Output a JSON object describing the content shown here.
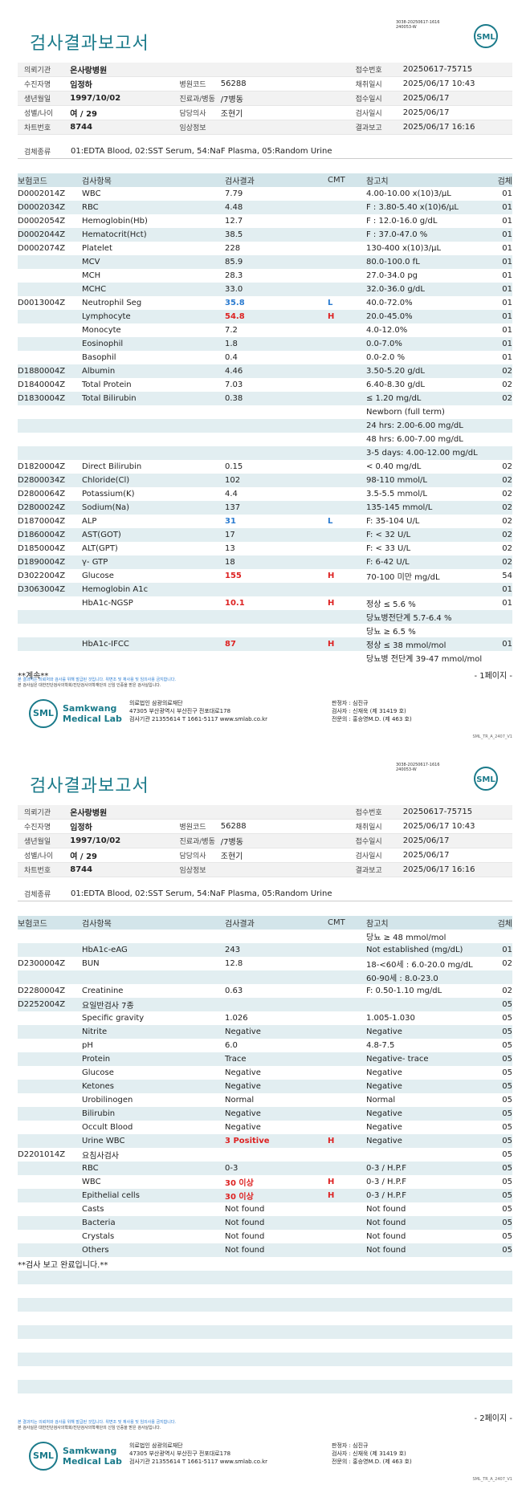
{
  "pages": [
    {
      "doc_no": "3038-20250617-1616\n240053-W",
      "title": "검사결과보고서",
      "logo": "SML",
      "info": [
        [
          {
            "label": "의뢰기관",
            "value": "온사랑병원",
            "bold": true
          },
          {
            "label": "",
            "value": ""
          },
          {
            "label": "접수번호",
            "value": "20250617-75715"
          }
        ],
        [
          {
            "label": "수진자명",
            "value": "임정하",
            "bold": true
          },
          {
            "label": "병원코드",
            "value": "56288"
          },
          {
            "label": "채취일시",
            "value": "2025/06/17 10:43"
          }
        ],
        [
          {
            "label": "생년월일",
            "value": "1997/10/02",
            "bold": true
          },
          {
            "label": "진료과/병동",
            "value": "/7병동"
          },
          {
            "label": "접수일시",
            "value": "2025/06/17"
          }
        ],
        [
          {
            "label": "성별/나이",
            "value": "여 / 29",
            "bold": true
          },
          {
            "label": "담당의사",
            "value": "조현기"
          },
          {
            "label": "검사일시",
            "value": "2025/06/17"
          }
        ],
        [
          {
            "label": "차트번호",
            "value": "8744",
            "bold": true
          },
          {
            "label": "임상정보",
            "value": ""
          },
          {
            "label": "결과보고",
            "value": "2025/06/17 16:16"
          }
        ]
      ],
      "spec_label": "검체종류",
      "spec_value": "01:EDTA Blood, 02:SST Serum, 54:NaF Plasma, 05:Random Urine",
      "headers": [
        "보험코드",
        "검사항목",
        "검사결과",
        "CMT",
        "참고치",
        "검체"
      ],
      "rows": [
        [
          "D0002014Z",
          "WBC",
          "7.79",
          "",
          "4.00-10.00 x(10)3/μL",
          "01"
        ],
        [
          "D0002034Z",
          "RBC",
          "4.48",
          "",
          "F : 3.80-5.40 x(10)6/μL",
          "01"
        ],
        [
          "D0002054Z",
          "Hemoglobin(Hb)",
          "12.7",
          "",
          "F : 12.0-16.0 g/dL",
          "01"
        ],
        [
          "D0002044Z",
          "Hematocrit(Hct)",
          "38.5",
          "",
          "F : 37.0-47.0 %",
          "01"
        ],
        [
          "D0002074Z",
          "Platelet",
          "228",
          "",
          "130-400 x(10)3/μL",
          "01"
        ],
        [
          "",
          "MCV",
          "85.9",
          "",
          "80.0-100.0 fL",
          "01"
        ],
        [
          "",
          "MCH",
          "28.3",
          "",
          "27.0-34.0 pg",
          "01"
        ],
        [
          "",
          "MCHC",
          "33.0",
          "",
          "32.0-36.0 g/dL",
          "01"
        ],
        [
          "D0013004Z",
          "Neutrophil Seg",
          "35.8",
          "L",
          "40.0-72.0%",
          "01"
        ],
        [
          "",
          "Lymphocyte",
          "54.8",
          "H",
          "20.0-45.0%",
          "01"
        ],
        [
          "",
          "Monocyte",
          "7.2",
          "",
          "4.0-12.0%",
          "01"
        ],
        [
          "",
          "Eosinophil",
          "1.8",
          "",
          "0.0-7.0%",
          "01"
        ],
        [
          "",
          "Basophil",
          "0.4",
          "",
          "0.0-2.0 %",
          "01"
        ],
        [
          "D1880004Z",
          "Albumin",
          "4.46",
          "",
          "3.50-5.20 g/dL",
          "02"
        ],
        [
          "D1840004Z",
          "Total Protein",
          "7.03",
          "",
          "6.40-8.30 g/dL",
          "02"
        ],
        [
          "D1830004Z",
          "Total Bilirubin",
          "0.38",
          "",
          "≤ 1.20 mg/dL",
          "02"
        ],
        [
          "",
          "",
          "",
          "",
          "Newborn (full term)",
          ""
        ],
        [
          "",
          "",
          "",
          "",
          "24 hrs: 2.00-6.00 mg/dL",
          ""
        ],
        [
          "",
          "",
          "",
          "",
          "48 hrs: 6.00-7.00 mg/dL",
          ""
        ],
        [
          "",
          "",
          "",
          "",
          "3-5 days: 4.00-12.00 mg/dL",
          ""
        ],
        [
          "D1820004Z",
          "Direct Bilirubin",
          "0.15",
          "",
          "< 0.40 mg/dL",
          "02"
        ],
        [
          "D2800034Z",
          "Chloride(Cl)",
          "102",
          "",
          "98-110 mmol/L",
          "02"
        ],
        [
          "D2800064Z",
          "Potassium(K)",
          "4.4",
          "",
          "3.5-5.5 mmol/L",
          "02"
        ],
        [
          "D2800024Z",
          "Sodium(Na)",
          "137",
          "",
          "135-145 mmol/L",
          "02"
        ],
        [
          "D1870004Z",
          "ALP",
          "31",
          "L",
          "F: 35-104 U/L",
          "02"
        ],
        [
          "D1860004Z",
          "AST(GOT)",
          "17",
          "",
          "F: < 32 U/L",
          "02"
        ],
        [
          "D1850004Z",
          "ALT(GPT)",
          "13",
          "",
          "F: < 33 U/L",
          "02"
        ],
        [
          "D1890004Z",
          "γ- GTP",
          "18",
          "",
          "F: 6-42 U/L",
          "02"
        ],
        [
          "D3022004Z",
          "Glucose",
          "155",
          "H",
          "70-100 미만 mg/dL",
          "54"
        ],
        [
          "D3063004Z",
          "Hemoglobin A1c",
          "",
          "",
          "",
          "01"
        ],
        [
          "",
          "HbA1c-NGSP",
          "10.1",
          "H",
          "정상 ≤ 5.6 %",
          "01"
        ],
        [
          "",
          "",
          "",
          "",
          "당뇨병전단계 5.7-6.4 %",
          ""
        ],
        [
          "",
          "",
          "",
          "",
          "당뇨 ≥ 6.5 %",
          ""
        ],
        [
          "",
          "HbA1c-IFCC",
          "87",
          "H",
          "정상 ≤ 38 mmol/mol",
          "01"
        ],
        [
          "",
          "",
          "",
          "",
          "당뇨병 전단계 39-47 mmol/mol",
          ""
        ]
      ],
      "end_text": "**계속**",
      "page_label": "- 1페이지 -",
      "note1": "본 결과지는 의뢰처와 검사를 위해 발급된 것입니다. 위변조 및 재사용 및 임의사용 금지합니다.",
      "note2": "본 검사실은 대한진단검사의학회/진단검사의학재단의 신임 인증을 받은 검사실입니다.",
      "lab_name1": "Samkwang",
      "lab_name2": "Medical Lab",
      "lab_org": "의료법인 삼광의료재단",
      "lab_addr": "47305 부산광역시 부산진구 전포대로178",
      "lab_tel": "검사기관 21355614 T 1661-5117 www.smlab.co.kr",
      "sign1": "판정자 : 심진규",
      "sign2": "검사자 : 신재욱 (제 31419 호)",
      "sign3": "전문의 : 홍승영M.D. (제 463 호)",
      "version": "SML_TR_A_2407_V1"
    },
    {
      "doc_no": "3038-20250617-1616\n240053-W",
      "title": "검사결과보고서",
      "logo": "SML",
      "info": [
        [
          {
            "label": "의뢰기관",
            "value": "온사랑병원",
            "bold": true
          },
          {
            "label": "",
            "value": ""
          },
          {
            "label": "접수번호",
            "value": "20250617-75715"
          }
        ],
        [
          {
            "label": "수진자명",
            "value": "임정하",
            "bold": true
          },
          {
            "label": "병원코드",
            "value": "56288"
          },
          {
            "label": "채취일시",
            "value": "2025/06/17 10:43"
          }
        ],
        [
          {
            "label": "생년월일",
            "value": "1997/10/02",
            "bold": true
          },
          {
            "label": "진료과/병동",
            "value": "/7병동"
          },
          {
            "label": "접수일시",
            "value": "2025/06/17"
          }
        ],
        [
          {
            "label": "성별/나이",
            "value": "여 / 29",
            "bold": true
          },
          {
            "label": "담당의사",
            "value": "조현기"
          },
          {
            "label": "검사일시",
            "value": "2025/06/17"
          }
        ],
        [
          {
            "label": "차트번호",
            "value": "8744",
            "bold": true
          },
          {
            "label": "임상정보",
            "value": ""
          },
          {
            "label": "결과보고",
            "value": "2025/06/17 16:16"
          }
        ]
      ],
      "spec_label": "검체종류",
      "spec_value": "01:EDTA Blood, 02:SST Serum, 54:NaF Plasma, 05:Random Urine",
      "headers": [
        "보험코드",
        "검사항목",
        "검사결과",
        "CMT",
        "참고치",
        "검체"
      ],
      "rows": [
        [
          "",
          "",
          "",
          "",
          "당뇨 ≥ 48 mmol/mol",
          ""
        ],
        [
          "",
          "HbA1c-eAG",
          "243",
          "",
          "Not established (mg/dL)",
          "01"
        ],
        [
          "D2300004Z",
          "BUN",
          "12.8",
          "",
          "18-<60세 : 6.0-20.0 mg/dL",
          "02"
        ],
        [
          "",
          "",
          "",
          "",
          "60-90세 : 8.0-23.0",
          ""
        ],
        [
          "D2280004Z",
          "Creatinine",
          "0.63",
          "",
          "F: 0.50-1.10 mg/dL",
          "02"
        ],
        [
          "D2252004Z",
          "요일반검사 7종",
          "",
          "",
          "",
          "05"
        ],
        [
          "",
          "Specific gravity",
          "1.026",
          "",
          "1.005-1.030",
          "05"
        ],
        [
          "",
          "Nitrite",
          "Negative",
          "",
          "Negative",
          "05"
        ],
        [
          "",
          "pH",
          "6.0",
          "",
          "4.8-7.5",
          "05"
        ],
        [
          "",
          "Protein",
          "Trace",
          "",
          "Negative- trace",
          "05"
        ],
        [
          "",
          "Glucose",
          "Negative",
          "",
          "Negative",
          "05"
        ],
        [
          "",
          "Ketones",
          "Negative",
          "",
          "Negative",
          "05"
        ],
        [
          "",
          "Urobilinogen",
          "Normal",
          "",
          "Normal",
          "05"
        ],
        [
          "",
          "Bilirubin",
          "Negative",
          "",
          "Negative",
          "05"
        ],
        [
          "",
          "Occult Blood",
          "Negative",
          "",
          "Negative",
          "05"
        ],
        [
          "",
          "Urine WBC",
          "3 Positive",
          "H",
          "Negative",
          "05"
        ],
        [
          "D2201014Z",
          "요침사검사",
          "",
          "",
          "",
          "05"
        ],
        [
          "",
          "RBC",
          "0-3",
          "",
          "0-3 / H.P.F",
          "05"
        ],
        [
          "",
          "WBC",
          "30 이상",
          "H",
          "0-3 / H.P.F",
          "05"
        ],
        [
          "",
          "Epithelial cells",
          "30 이상",
          "H",
          "0-3 / H.P.F",
          "05"
        ],
        [
          "",
          "Casts",
          "Not found",
          "",
          "Not found",
          "05"
        ],
        [
          "",
          "Bacteria",
          "Not found",
          "",
          "Not found",
          "05"
        ],
        [
          "",
          "Crystals",
          "Not found",
          "",
          "Not found",
          "05"
        ],
        [
          "",
          "Others",
          "Not found",
          "",
          "Not found",
          "05"
        ],
        [
          "**검사 보고 완료입니다.**",
          "",
          "",
          "",
          "",
          ""
        ],
        [
          "",
          "",
          "",
          "",
          "",
          ""
        ],
        [
          "",
          "",
          "",
          "",
          "",
          ""
        ],
        [
          "",
          "",
          "",
          "",
          "",
          ""
        ],
        [
          "",
          "",
          "",
          "",
          "",
          ""
        ],
        [
          "",
          "",
          "",
          "",
          "",
          ""
        ],
        [
          "",
          "",
          "",
          "",
          "",
          ""
        ],
        [
          "",
          "",
          "",
          "",
          "",
          ""
        ],
        [
          "",
          "",
          "",
          "",
          "",
          ""
        ],
        [
          "",
          "",
          "",
          "",
          "",
          ""
        ],
        [
          "",
          "",
          "",
          "",
          "",
          ""
        ]
      ],
      "end_text": "",
      "page_label": "- 2페이지 -",
      "note1": "본 결과지는 의뢰처와 검사를 위해 발급된 것입니다. 위변조 및 재사용 및 임의사용 금지합니다.",
      "note2": "본 검사실은 대한진단검사의학회/진단검사의학재단의 신임 인증을 받은 검사실입니다.",
      "lab_name1": "Samkwang",
      "lab_name2": "Medical Lab",
      "lab_org": "의료법인 삼광의료재단",
      "lab_addr": "47305 부산광역시 부산진구 전포대로178",
      "lab_tel": "검사기관 21355614 T 1661-5117 www.smlab.co.kr",
      "sign1": "판정자 : 심진규",
      "sign2": "검사자 : 신재욱 (제 31419 호)",
      "sign3": "전문의 : 홍승영M.D. (제 463 호)",
      "version": "SML_TR_A_2407_V1"
    }
  ]
}
